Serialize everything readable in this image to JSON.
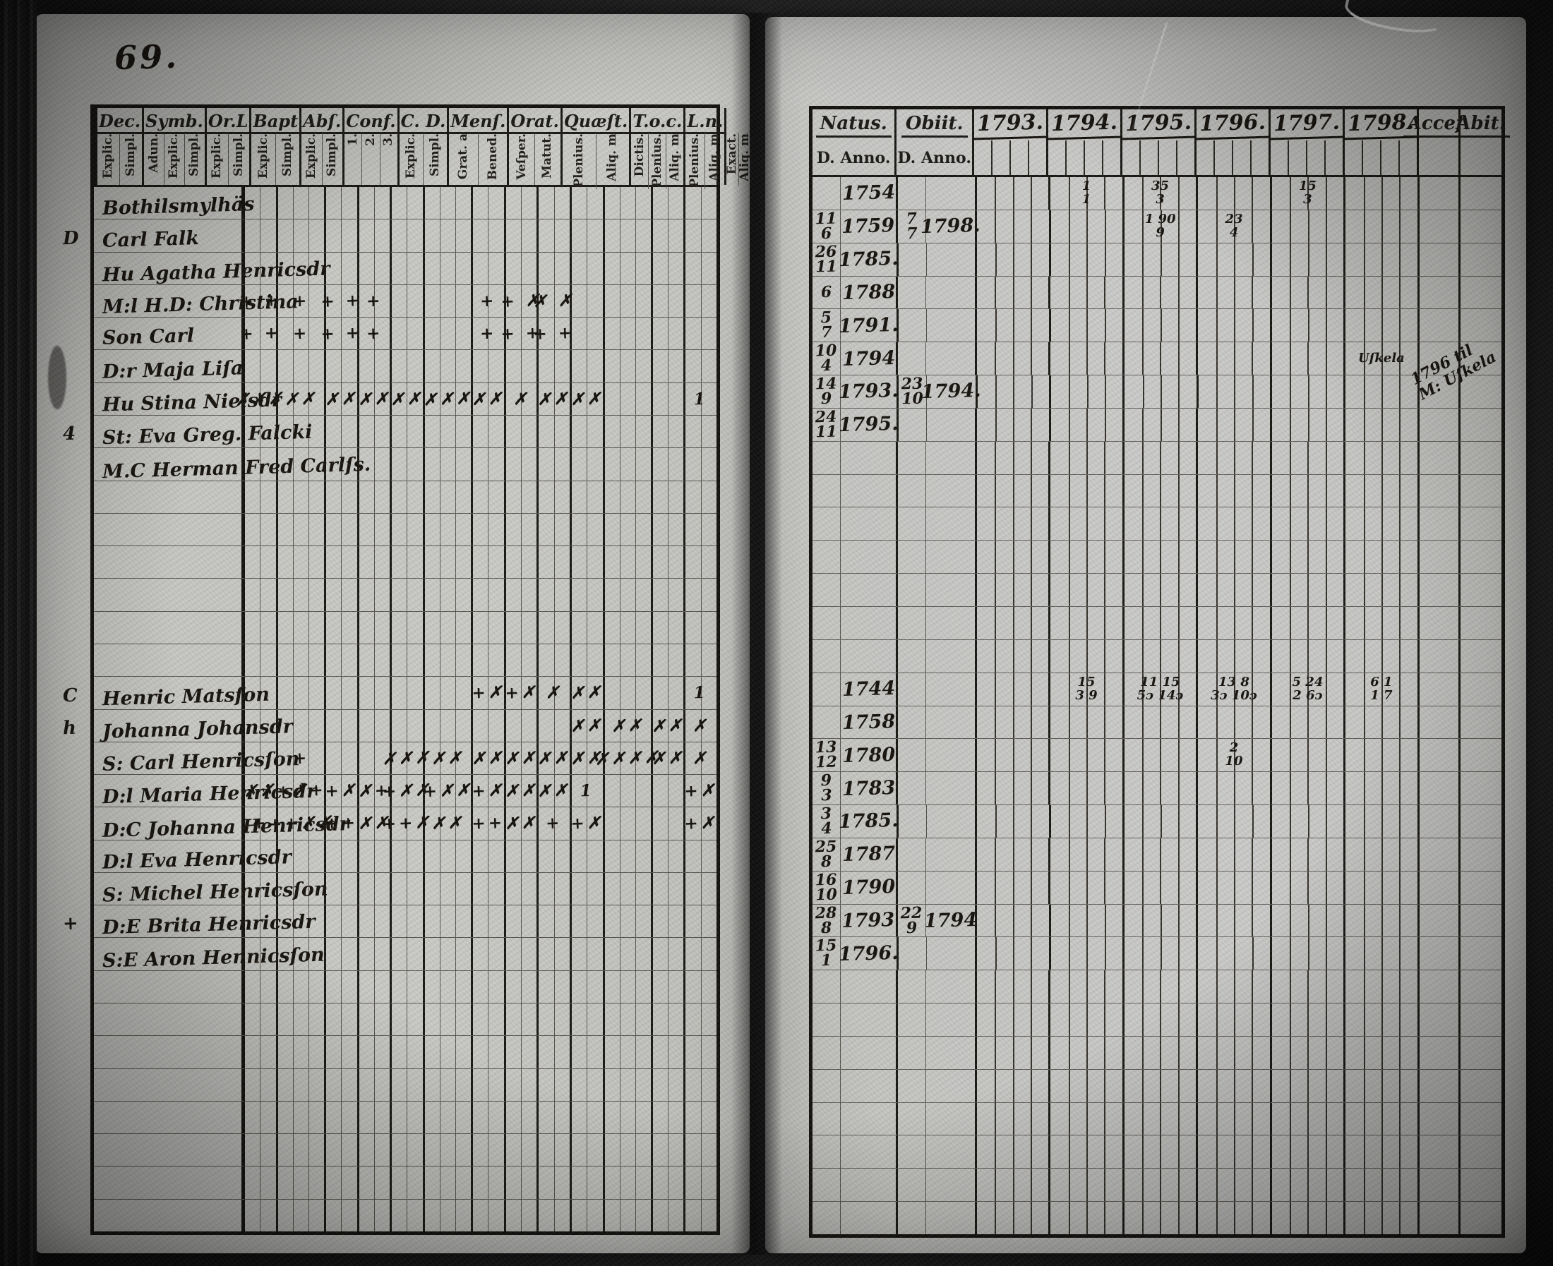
{
  "meta": {
    "document_kind": "scanned parish examination register spread",
    "folio_number": "69."
  },
  "left_page": {
    "column_groups": [
      {
        "label": "Dec.",
        "subs": [
          "Explic.",
          "Simpl."
        ]
      },
      {
        "label": "Symb.",
        "subs": [
          "Adun.",
          "Explic.",
          "Simpl."
        ]
      },
      {
        "label": "Or.L",
        "subs": [
          "Explic.",
          "Simpl."
        ]
      },
      {
        "label": "Bapt",
        "subs": [
          "Explic.",
          "Simpl."
        ]
      },
      {
        "label": "Abſ.",
        "subs": [
          "Explic.",
          "Simpl."
        ]
      },
      {
        "label": "Conf.",
        "subs": [
          "1.",
          "2.",
          "3."
        ]
      },
      {
        "label": "C. D.",
        "subs": [
          "Explic.",
          "Simpl."
        ]
      },
      {
        "label": "Menſ.",
        "subs": [
          "Grat. a",
          "Bened."
        ]
      },
      {
        "label": "Orat.",
        "subs": [
          "Veſper.",
          "Matut."
        ]
      },
      {
        "label": "Quæſt.",
        "subs": [
          "Plenius.",
          "Aliq. m"
        ]
      },
      {
        "label": "T.o.c.",
        "subs": [
          "Dictis.",
          "Plenius.",
          "Aliq. m"
        ]
      },
      {
        "label": "L.n.",
        "subs": [
          "Plenius.",
          "Aliq. m"
        ]
      },
      {
        "label": "",
        "subs": [
          "Exact.",
          "Aliq. m"
        ]
      }
    ],
    "row_count": 32,
    "rows": {
      "0": {
        "name": "Bothilsmylhäs"
      },
      "1": {
        "prefix": "D",
        "name": "Carl Falk"
      },
      "2": {
        "name": "Hu Agatha Henricsdr"
      },
      "3": {
        "name": "M:l H.D: Christina",
        "marks": {
          "0": "+ +",
          "1": "+",
          "2": "+ +",
          "3": "+",
          "6": "+",
          "7": "+ ✗",
          "8": "✗ ✗"
        }
      },
      "4": {
        "name": "Son Carl",
        "marks": {
          "0": "+ +",
          "1": "+",
          "2": "+ +",
          "3": "+",
          "6": "+",
          "7": "+ +",
          "8": "+ +"
        }
      },
      "5": {
        "name": "D:r Maja Liſa"
      },
      "6": {
        "name": "Hu Stina Nielsdr",
        "marks": {
          "0": "✗✗✗",
          "1": "✗✗",
          "2": "✗✗",
          "3": "✗✗",
          "4": "✗✗",
          "5": "✗✗✗",
          "6": "✗✗",
          "7": "✗",
          "8": "✗✗",
          "9": "✗✗",
          "12": "1"
        }
      },
      "7": {
        "prefix": "4",
        "name": "St: Eva Greg. Falcki"
      },
      "8": {
        "name": "M.C Herman Fred Carlſs."
      },
      "15": {
        "prefix": "C",
        "name": "Henric Matsſon",
        "marks": {
          "6": "+✗",
          "7": "+✗",
          "8": "✗",
          "9": "✗✗",
          "12": "1"
        }
      },
      "16": {
        "prefix": "h",
        "name": "Johanna Johansdr",
        "marks": {
          "9": "✗✗",
          "10": "✗✗",
          "11": "✗✗",
          "12": "✗"
        }
      },
      "17": {
        "name": "S: Carl Henricsſon",
        "marks": {
          "1": "+",
          "4": "✗✗✗",
          "5": "✗✗",
          "6": "✗✗",
          "7": "✗✗",
          "8": "✗✗",
          "9": "✗✗",
          "10": "✗✗✗✗",
          "11": "✗✗",
          "12": "✗"
        }
      },
      "18": {
        "name": "D:l Maria Henricsdr",
        "marks": {
          "0": "✗✗",
          "1": "+✗+",
          "2": "+✗",
          "3": "✗+",
          "4": "+✗✗",
          "5": "+✗✗",
          "6": "+✗",
          "7": "✗✗",
          "8": "✗✗",
          "9": "1",
          "12": "+✗"
        }
      },
      "19": {
        "name": "D:C Johanna Henricsdr",
        "marks": {
          "0": "+",
          "1": "++✗✗",
          "2": "++",
          "3": "✗✗",
          "4": "++✗",
          "5": "✗✗",
          "6": "++",
          "7": "✗✗",
          "8": "+",
          "9": "+✗",
          "12": "+✗"
        }
      },
      "20": {
        "name": "D:l Eva Henricsdr"
      },
      "21": {
        "name": "S: Michel Henricsſon"
      },
      "22": {
        "prefix": "+",
        "name": "D:E Brita Henricsdr"
      },
      "23": {
        "name": "S:E Aron Hennicsſon"
      }
    }
  },
  "right_page": {
    "natus_label": "Natus.",
    "obiit_label": "Obiit.",
    "day_anno_sub": "D. Anno.",
    "years": [
      "1793.",
      "1794.",
      "1795.",
      "1796.",
      "1797.",
      "1798."
    ],
    "accej_label": "Acceſ.",
    "abit_label": "Abit.",
    "row_count": 32,
    "rows": {
      "0": {
        "natus_anno": "1754",
        "tallies": {
          "1794.": "1\n1",
          "1795.": "35\n3",
          "1797.": "15\n3"
        }
      },
      "1": {
        "natus_d": "11\n6",
        "natus_anno": "1759",
        "obiit_d": "7\n7",
        "obiit_anno": "1798.",
        "tallies": {
          "1795.": "1 90\n9",
          "1796.": "23\n4"
        }
      },
      "2": {
        "natus_d": "26\n11",
        "natus_anno": "1785."
      },
      "3": {
        "natus_d": "6",
        "natus_anno": "1788"
      },
      "4": {
        "natus_d": "5\n7",
        "natus_anno": "1791."
      },
      "5": {
        "natus_d": "10\n4",
        "natus_anno": "1794",
        "tallies": {
          "1798.": "Uſkela"
        },
        "diagonal_note": "1796 til\nM: Uſkela"
      },
      "6": {
        "natus_d": "14\n9",
        "natus_anno": "1793.",
        "obiit_d": "23\n10",
        "obiit_anno": "1794."
      },
      "7": {
        "natus_d": "24\n11",
        "natus_anno": "1795."
      },
      "15": {
        "natus_anno": "1744",
        "tallies": {
          "1794.": "15\n3 9",
          "1795.": "11 15\n5ɔ 14ɔ",
          "1796.": "13 8\n3ɔ 10ɔ",
          "1797.": "5 24\n2 6ɔ",
          "1798.": "6 1\n1 7"
        }
      },
      "16": {
        "natus_anno": "1758"
      },
      "17": {
        "natus_d": "13\n12",
        "natus_anno": "1780",
        "tallies": {
          "1796.": "2\n10"
        }
      },
      "18": {
        "natus_d": "9\n3",
        "natus_anno": "1783"
      },
      "19": {
        "natus_d": "3\n4",
        "natus_anno": "1785."
      },
      "20": {
        "natus_d": "25\n8",
        "natus_anno": "1787"
      },
      "21": {
        "natus_d": "16\n10",
        "natus_anno": "1790"
      },
      "22": {
        "natus_d": "28\n8",
        "natus_anno": "1793",
        "obiit_d": "22\n9",
        "obiit_anno": "1794"
      },
      "23": {
        "natus_d": "15\n1",
        "natus_anno": "1796."
      }
    }
  }
}
